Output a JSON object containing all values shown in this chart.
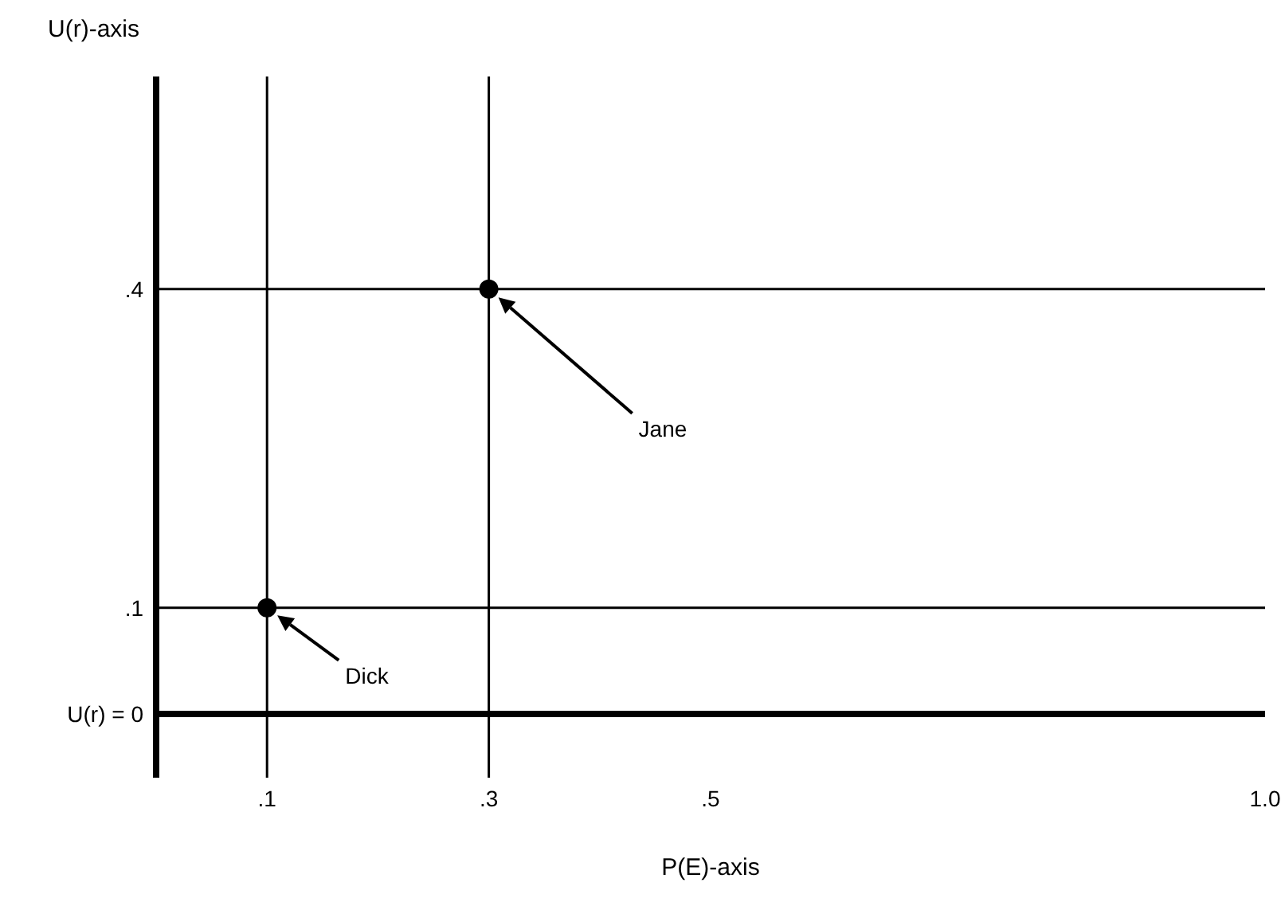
{
  "chart_data": {
    "type": "scatter",
    "xlabel": "P(E)-axis",
    "ylabel": "U(r)-axis",
    "x": [
      0.1,
      0.3
    ],
    "series": [
      {
        "color": "#000000",
        "values": [
          0.1,
          0.4
        ]
      }
    ],
    "marker": "circle",
    "grid": false,
    "xlim": [
      0,
      1.0
    ],
    "ylim": [
      -0.06,
      0.6
    ],
    "xticks": [
      {
        "value": 0.1,
        "label": ".1"
      },
      {
        "value": 0.3,
        "label": ".3"
      },
      {
        "value": 0.5,
        "label": ".5"
      },
      {
        "value": 1.0,
        "label": "1.0"
      }
    ],
    "yticks": [
      {
        "value": 0,
        "label": "U(r) = 0"
      },
      {
        "value": 0.1,
        "label": ".1"
      },
      {
        "value": 0.4,
        "label": ".4"
      }
    ],
    "ref_lines": [
      {
        "axis": "y",
        "value": 0,
        "color": "#000000"
      },
      {
        "axis": "x",
        "value": 0.1,
        "color": "#000000"
      },
      {
        "axis": "x",
        "value": 0.3,
        "color": "#000000"
      },
      {
        "axis": "y",
        "value": 0.1,
        "color": "#000000"
      },
      {
        "axis": "y",
        "value": 0.4,
        "color": "#000000"
      }
    ],
    "annotations": [
      "Dick",
      "Jane"
    ]
  }
}
